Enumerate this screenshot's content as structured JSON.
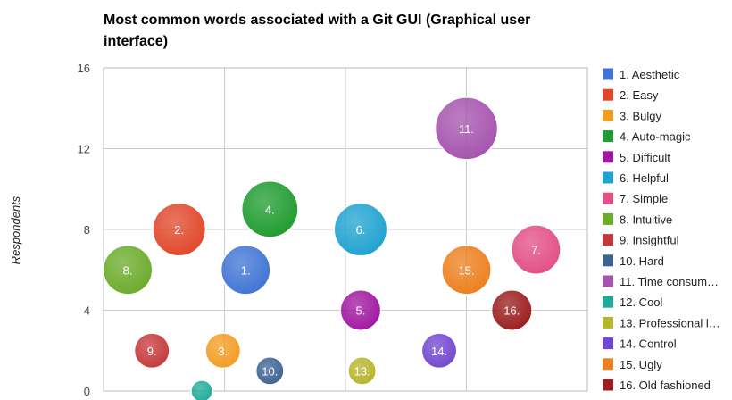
{
  "chart_data": {
    "type": "bubble",
    "title_line1": "Most common words associated with a Git GUI (Graphical user",
    "title_line2": "interface)",
    "ylabel": "Respondents",
    "xlabel": "",
    "ylim": [
      0,
      16
    ],
    "xlim": [
      0,
      16
    ],
    "yticks": [
      "0",
      "4",
      "8",
      "12",
      "16"
    ],
    "grid": true,
    "legend_position": "right",
    "points": [
      {
        "label": "1.",
        "legend": "1. Aesthetic",
        "x": 4.7,
        "y": 6,
        "size": 5,
        "color": "#3f74d4"
      },
      {
        "label": "2.",
        "legend": "2. Easy",
        "x": 2.5,
        "y": 8,
        "size": 6,
        "color": "#e0472a"
      },
      {
        "label": "3.",
        "legend": "3. Bulgy",
        "x": 3.95,
        "y": 2,
        "size": 2,
        "color": "#f39c22"
      },
      {
        "label": "4.",
        "legend": "4. Auto-magic",
        "x": 5.5,
        "y": 9,
        "size": 7,
        "color": "#1f9b2f"
      },
      {
        "label": "5.",
        "legend": "5. Difficult",
        "x": 8.5,
        "y": 4,
        "size": 3,
        "color": "#a017a0"
      },
      {
        "label": "6.",
        "legend": "6. Helpful",
        "x": 8.5,
        "y": 8,
        "size": 6,
        "color": "#1fa2d0"
      },
      {
        "label": "7.",
        "legend": "7. Simple",
        "x": 14.3,
        "y": 7,
        "size": 5,
        "color": "#e34e85"
      },
      {
        "label": "8.",
        "legend": "8. Intuitive",
        "x": 0.8,
        "y": 6,
        "size": 5,
        "color": "#6aab2a"
      },
      {
        "label": "9.",
        "legend": "9. Insightful",
        "x": 1.6,
        "y": 2,
        "size": 2,
        "color": "#c4383b"
      },
      {
        "label": "10.",
        "legend": "10. Hard",
        "x": 5.5,
        "y": 1,
        "size": 1,
        "color": "#3c6292"
      },
      {
        "label": "11.",
        "legend": "11. Time consum…",
        "x": 12,
        "y": 13,
        "size": 9,
        "color": "#a553ad"
      },
      {
        "label": "",
        "legend": "12. Cool",
        "x": 3.25,
        "y": 0,
        "size": 0.4,
        "color": "#1fab99"
      },
      {
        "label": "13.",
        "legend": "13. Professional l…",
        "x": 8.55,
        "y": 1,
        "size": 1,
        "color": "#b7b52a"
      },
      {
        "label": "14.",
        "legend": "14. Control",
        "x": 11.1,
        "y": 2,
        "size": 2,
        "color": "#7146d0"
      },
      {
        "label": "15.",
        "legend": "15. Ugly",
        "x": 12,
        "y": 6,
        "size": 5,
        "color": "#ec7f1e"
      },
      {
        "label": "16.",
        "legend": "16. Old fashioned",
        "x": 13.5,
        "y": 4,
        "size": 3,
        "color": "#9a1c1e"
      }
    ]
  }
}
